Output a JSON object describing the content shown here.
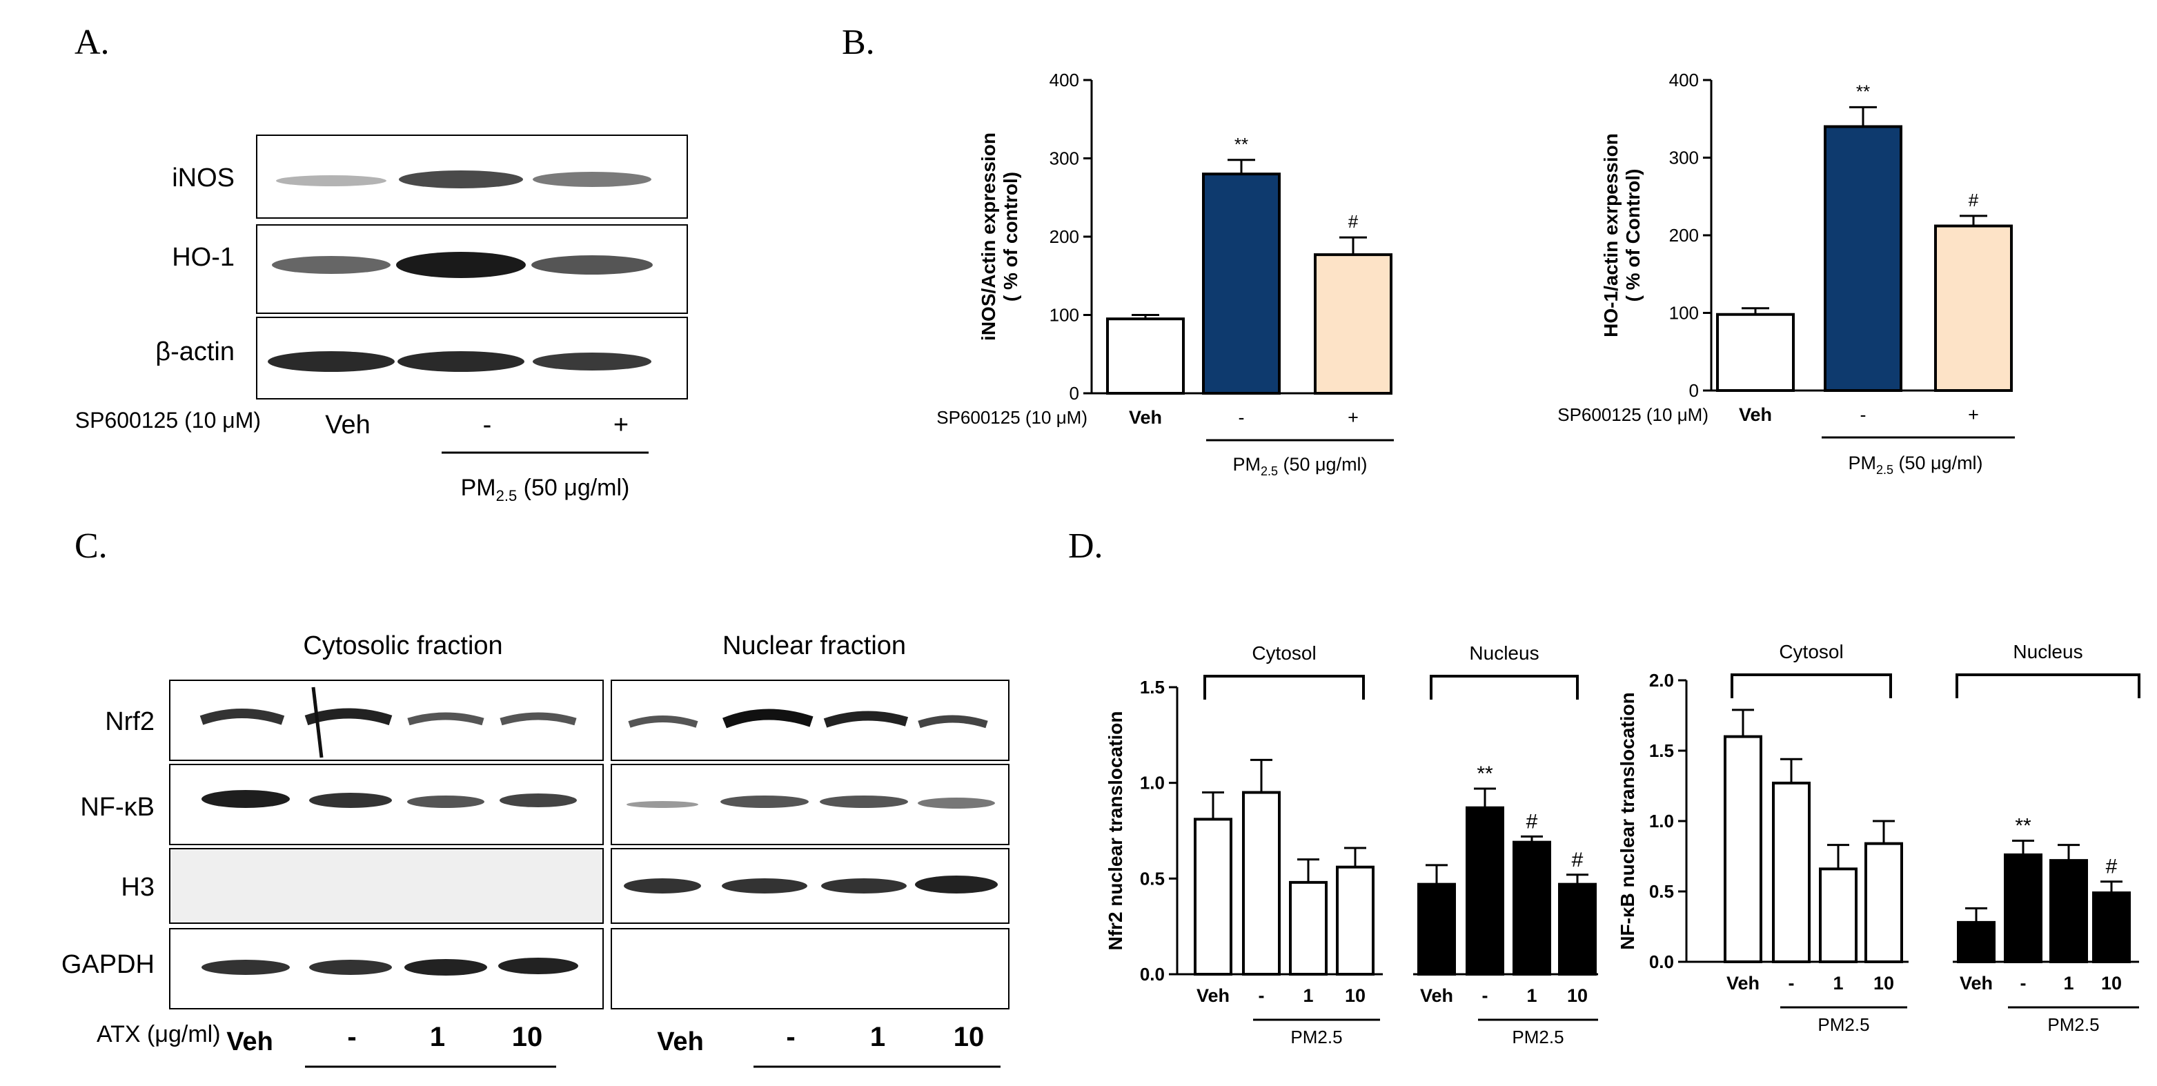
{
  "panels": {
    "A": {
      "letter": "A.",
      "rows": [
        "iNOS",
        "HO-1",
        "β-actin"
      ],
      "treatment_label": "SP600125 (10 μM)",
      "lanes": [
        "Veh",
        "-",
        "+"
      ],
      "pm_label_main": "PM",
      "pm_label_sub": "2.5",
      "pm_label_tail": " (50 μg/ml)"
    },
    "B": {
      "letter": "B.",
      "treatment_label": "SP600125 (10 μM)",
      "pm_label_main": "PM",
      "pm_label_sub": "2.5",
      "pm_label_tail": " (50 μg/ml)"
    },
    "C": {
      "letter": "C.",
      "fractions": [
        "Cytosolic fraction",
        "Nuclear fraction"
      ],
      "rows": [
        "Nrf2",
        "NF-κB",
        "H3",
        "GAPDH"
      ],
      "treatment_label": "ATX (μg/ml)",
      "lanes": [
        "Veh",
        "-",
        "1",
        "10"
      ]
    },
    "D": {
      "letter": "D."
    }
  },
  "chart_data": [
    {
      "id": "B-left",
      "type": "bar",
      "categories": [
        "Veh",
        "-",
        "+"
      ],
      "values": [
        95,
        280,
        177
      ],
      "errors": [
        5,
        18,
        22
      ],
      "annotations": [
        "",
        "**",
        "#"
      ],
      "colors": [
        "#ffffff",
        "#0e3a6e",
        "#fde3c7"
      ],
      "ylabel": "iNOS/Actin expression\n( % of control)",
      "ylim": [
        0,
        400
      ],
      "yticks": [
        0,
        100,
        200,
        300,
        400
      ],
      "group_bracket": "PM2.5 (50 μg/ml)"
    },
    {
      "id": "B-right",
      "type": "bar",
      "categories": [
        "Veh",
        "-",
        "+"
      ],
      "values": [
        98,
        340,
        212
      ],
      "errors": [
        8,
        25,
        13
      ],
      "annotations": [
        "",
        "**",
        "#"
      ],
      "colors": [
        "#ffffff",
        "#0e3a6e",
        "#fde3c7"
      ],
      "ylabel": "HO-1/actin exrpession\n( % of Control)",
      "ylim": [
        0,
        400
      ],
      "yticks": [
        0,
        100,
        200,
        300,
        400
      ],
      "group_bracket": "PM2.5 (50 μg/ml)"
    },
    {
      "id": "D-left",
      "type": "bar",
      "groups": [
        "Cytosol",
        "Nucleus"
      ],
      "categories": [
        "Veh",
        "-",
        "1",
        "10"
      ],
      "series": [
        {
          "group": "Cytosol",
          "values": [
            0.81,
            0.95,
            0.48,
            0.56
          ],
          "errors": [
            0.14,
            0.17,
            0.12,
            0.1
          ],
          "annotations": [
            "",
            "",
            "",
            ""
          ],
          "fill": "#ffffff"
        },
        {
          "group": "Nucleus",
          "values": [
            0.47,
            0.87,
            0.69,
            0.47
          ],
          "errors": [
            0.1,
            0.1,
            0.03,
            0.05
          ],
          "annotations": [
            "",
            "**",
            "#",
            "#"
          ],
          "fill": "#000000"
        }
      ],
      "ylabel": "Nfr2 nuclear translocation",
      "ylim": [
        0,
        1.5
      ],
      "yticks": [
        0.0,
        0.5,
        1.0,
        1.5
      ],
      "ytick_labels": [
        "0.0",
        "0.5",
        "1.0",
        "1.5"
      ],
      "group_bracket": "PM2.5"
    },
    {
      "id": "D-right",
      "type": "bar",
      "groups": [
        "Cytosol",
        "Nucleus"
      ],
      "categories": [
        "Veh",
        "-",
        "1",
        "10"
      ],
      "series": [
        {
          "group": "Cytosol",
          "values": [
            1.6,
            1.27,
            0.66,
            0.84
          ],
          "errors": [
            0.19,
            0.17,
            0.17,
            0.16
          ],
          "annotations": [
            "",
            "",
            "",
            ""
          ],
          "fill": "#ffffff"
        },
        {
          "group": "Nucleus",
          "values": [
            0.28,
            0.76,
            0.72,
            0.49
          ],
          "errors": [
            0.1,
            0.1,
            0.11,
            0.08
          ],
          "annotations": [
            "",
            "**",
            "",
            "#"
          ],
          "fill": "#000000"
        }
      ],
      "ylabel": "NF-κB nuclear translocation",
      "ylim": [
        0,
        2.0
      ],
      "yticks": [
        0.0,
        0.5,
        1.0,
        1.5,
        2.0
      ],
      "ytick_labels": [
        "0.0",
        "0.5",
        "1.0",
        "1.5",
        "2.0"
      ],
      "group_bracket": "PM2.5"
    }
  ]
}
